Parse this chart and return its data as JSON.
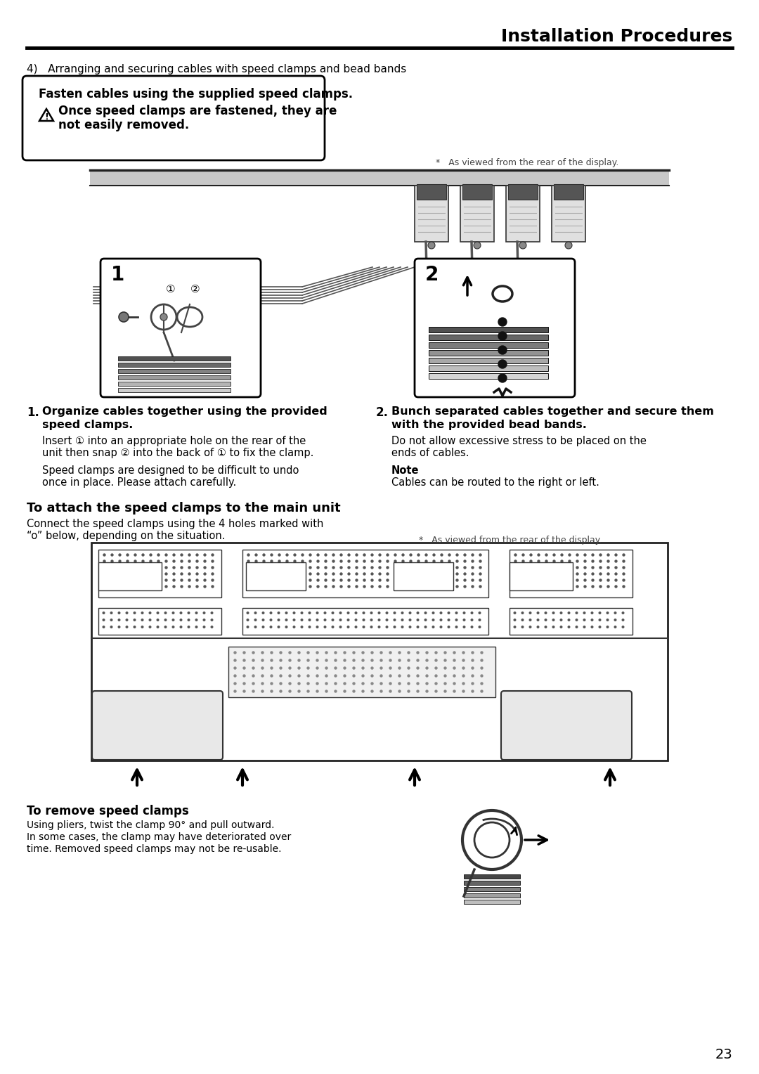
{
  "title": "Installation Procedures",
  "page_number": "23",
  "bg": "#ffffff",
  "step4_label": "4)   Arranging and securing cables with speed clamps and bead bands",
  "warn1": "Fasten cables using the supplied speed clamps.",
  "warn2a": "Once speed clamps are fastened, they are",
  "warn2b": "not easily removed.",
  "viewed1": "*   As viewed from the rear of the display.",
  "viewed2": "*   As viewed from the rear of the display.",
  "s1_title_a": "Organize cables together using the provided",
  "s1_title_b": "speed clamps.",
  "s1_body1a": "Insert ① into an appropriate hole on the rear of the",
  "s1_body1b": "unit then snap ② into the back of ① to fix the clamp.",
  "s1_body2a": "Speed clamps are designed to be difficult to undo",
  "s1_body2b": "once in place. Please attach carefully.",
  "s2_title_a": "Bunch separated cables together and secure them",
  "s2_title_b": "with the provided bead bands.",
  "s2_body1": "Do not allow excessive stress to be placed on the",
  "s2_body2": "ends of cables.",
  "note_title": "Note",
  "note_body": "Cables can be routed to the right or left.",
  "attach_title": "To attach the speed clamps to the main unit",
  "attach_body1": "Connect the speed clamps using the 4 holes marked with",
  "attach_body2": "“o” below, depending on the situation.",
  "remove_title": "To remove speed clamps",
  "remove_body1": "Using pliers, twist the clamp 90° and pull outward.",
  "remove_body2": "In some cases, the clamp may have deteriorated over",
  "remove_body3": "time. Removed speed clamps may not be re-usable."
}
